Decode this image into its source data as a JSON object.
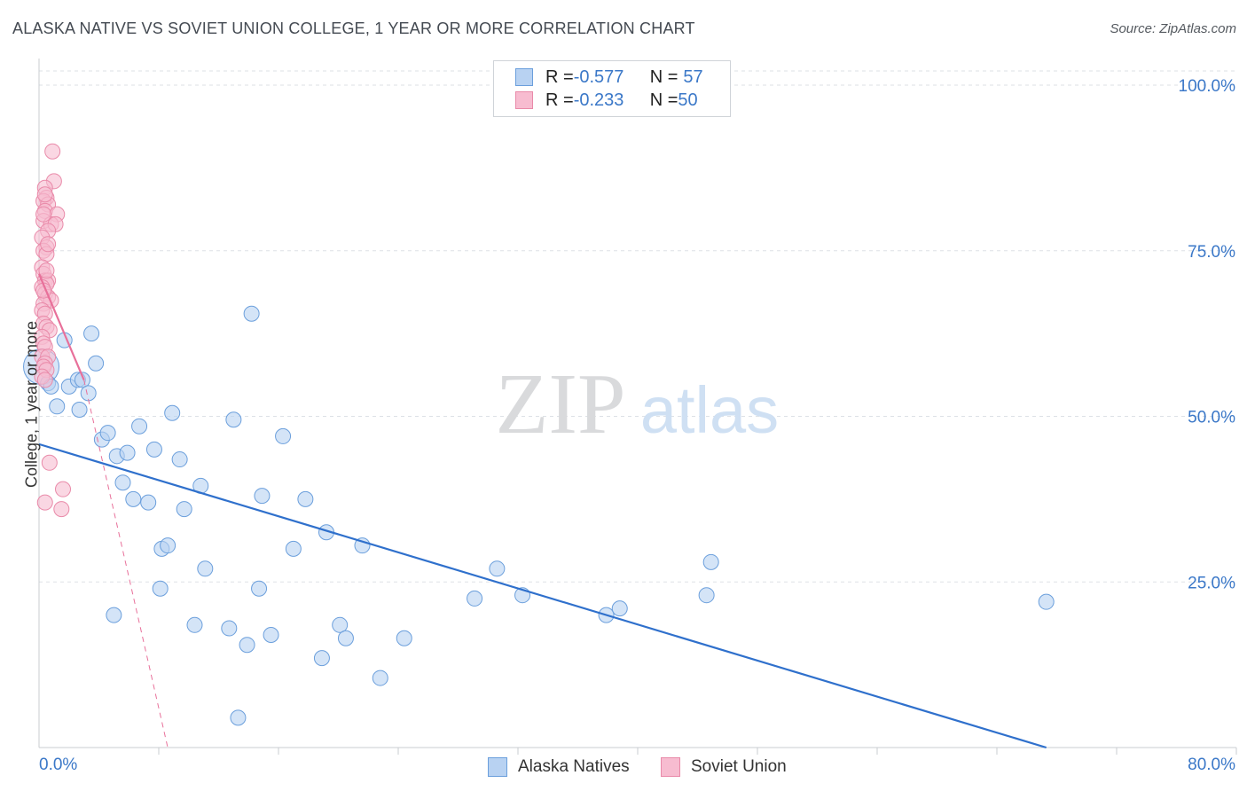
{
  "title": "ALASKA NATIVE VS SOVIET UNION COLLEGE, 1 YEAR OR MORE CORRELATION CHART",
  "source": "Source: ZipAtlas.com",
  "legend_stats": [
    {
      "r_label": "R = ",
      "r_value": "-0.577",
      "n_label": "N = ",
      "n_value": "57"
    },
    {
      "r_label": "R = ",
      "r_value": "-0.233",
      "n_label": "N = ",
      "n_value": "50"
    }
  ],
  "colors": {
    "blue_fill": "#b8d2f2",
    "blue_stroke": "#6b9fdc",
    "blue_line": "#2f70cc",
    "pink_fill": "#f7bcd0",
    "pink_stroke": "#e98aa9",
    "pink_line": "#e8709a",
    "grid": "#dde1e6",
    "axis_text": "#3b78c8"
  },
  "watermark": {
    "zip": "ZIP",
    "atlas": "atlas"
  },
  "chart_data": {
    "type": "scatter",
    "title": "ALASKA NATIVE VS SOVIET UNION COLLEGE, 1 YEAR OR MORE CORRELATION CHART",
    "xlabel": "",
    "ylabel": "College, 1 year or more",
    "xlim": [
      0,
      80
    ],
    "ylim": [
      0,
      100
    ],
    "x_tick_labels": [
      "0.0%",
      "80.0%"
    ],
    "y_ticks": [
      100,
      75,
      50,
      25
    ],
    "y_tick_labels": [
      "100.0%",
      "75.0%",
      "50.0%",
      "25.0%"
    ],
    "grid": true,
    "series": [
      {
        "name": "Alaska Natives",
        "color": "#6b9fdc",
        "points": [
          [
            0.3,
            57.5
          ],
          [
            0.6,
            55
          ],
          [
            0.8,
            54.5
          ],
          [
            1.2,
            51.5
          ],
          [
            1.7,
            61.5
          ],
          [
            2.0,
            54.5
          ],
          [
            2.6,
            55.5
          ],
          [
            2.7,
            51
          ],
          [
            2.9,
            55.5
          ],
          [
            3.3,
            53.5
          ],
          [
            3.5,
            62.5
          ],
          [
            3.8,
            58
          ],
          [
            4.2,
            46.5
          ],
          [
            4.6,
            47.5
          ],
          [
            5.0,
            20
          ],
          [
            5.2,
            44
          ],
          [
            5.9,
            44.5
          ],
          [
            5.6,
            40
          ],
          [
            6.3,
            37.5
          ],
          [
            6.7,
            48.5
          ],
          [
            7.3,
            37
          ],
          [
            7.7,
            45
          ],
          [
            8.1,
            24
          ],
          [
            8.2,
            30
          ],
          [
            8.6,
            30.5
          ],
          [
            8.9,
            50.5
          ],
          [
            9.4,
            43.5
          ],
          [
            9.7,
            36
          ],
          [
            10.4,
            18.5
          ],
          [
            10.8,
            39.5
          ],
          [
            11.1,
            27
          ],
          [
            12.7,
            18
          ],
          [
            13.0,
            49.5
          ],
          [
            13.3,
            4.5
          ],
          [
            13.9,
            15.5
          ],
          [
            14.2,
            65.5
          ],
          [
            14.7,
            24
          ],
          [
            14.9,
            38
          ],
          [
            15.5,
            17
          ],
          [
            16.3,
            47
          ],
          [
            17.0,
            30
          ],
          [
            17.8,
            37.5
          ],
          [
            18.9,
            13.5
          ],
          [
            19.2,
            32.5
          ],
          [
            20.1,
            18.5
          ],
          [
            20.5,
            16.5
          ],
          [
            21.6,
            30.5
          ],
          [
            22.8,
            10.5
          ],
          [
            24.4,
            16.5
          ],
          [
            29.1,
            22.5
          ],
          [
            30.6,
            27
          ],
          [
            32.3,
            23
          ],
          [
            37.9,
            20
          ],
          [
            38.8,
            21
          ],
          [
            44.6,
            23
          ],
          [
            44.9,
            28
          ],
          [
            67.3,
            22
          ]
        ]
      },
      {
        "name": "Soviet Union",
        "color": "#e98aa9",
        "points": [
          [
            0.9,
            90
          ],
          [
            1.0,
            85.5
          ],
          [
            0.4,
            84.5
          ],
          [
            0.5,
            83
          ],
          [
            0.3,
            82.5
          ],
          [
            0.6,
            82
          ],
          [
            0.4,
            81
          ],
          [
            1.2,
            80.5
          ],
          [
            0.3,
            79.5
          ],
          [
            0.8,
            79
          ],
          [
            1.1,
            79
          ],
          [
            0.6,
            78
          ],
          [
            0.2,
            77
          ],
          [
            0.5,
            75.5
          ],
          [
            0.3,
            75
          ],
          [
            0.5,
            74.5
          ],
          [
            0.2,
            72.5
          ],
          [
            0.3,
            71.5
          ],
          [
            0.4,
            70.5
          ],
          [
            0.6,
            70.5
          ],
          [
            0.5,
            70
          ],
          [
            0.2,
            69.5
          ],
          [
            0.4,
            68.5
          ],
          [
            0.6,
            68
          ],
          [
            0.8,
            67.5
          ],
          [
            0.3,
            67
          ],
          [
            0.2,
            66
          ],
          [
            0.4,
            65.5
          ],
          [
            0.3,
            64
          ],
          [
            0.5,
            63.5
          ],
          [
            0.7,
            63
          ],
          [
            0.2,
            62
          ],
          [
            0.3,
            61
          ],
          [
            0.4,
            60.5
          ],
          [
            0.2,
            59
          ],
          [
            0.6,
            59
          ],
          [
            0.4,
            58
          ],
          [
            0.3,
            57.5
          ],
          [
            0.5,
            57
          ],
          [
            0.2,
            56
          ],
          [
            0.4,
            55.5
          ],
          [
            0.7,
            43
          ],
          [
            0.4,
            37
          ],
          [
            1.6,
            39
          ],
          [
            1.5,
            36
          ],
          [
            0.3,
            69
          ],
          [
            0.5,
            72
          ],
          [
            0.3,
            80.5
          ],
          [
            0.4,
            83.5
          ],
          [
            0.6,
            76
          ]
        ]
      }
    ],
    "trend_lines": [
      {
        "series": "Alaska Natives",
        "x": [
          0,
          67.3
        ],
        "y": [
          45.8,
          0
        ],
        "style": "solid"
      },
      {
        "series": "Soviet Union",
        "x": [
          0,
          3.0
        ],
        "y": [
          71.5,
          55.5
        ],
        "style": "solid"
      },
      {
        "series": "Soviet Union",
        "x": [
          3.0,
          8.6
        ],
        "y": [
          55.5,
          0
        ],
        "style": "dashed"
      }
    ]
  }
}
